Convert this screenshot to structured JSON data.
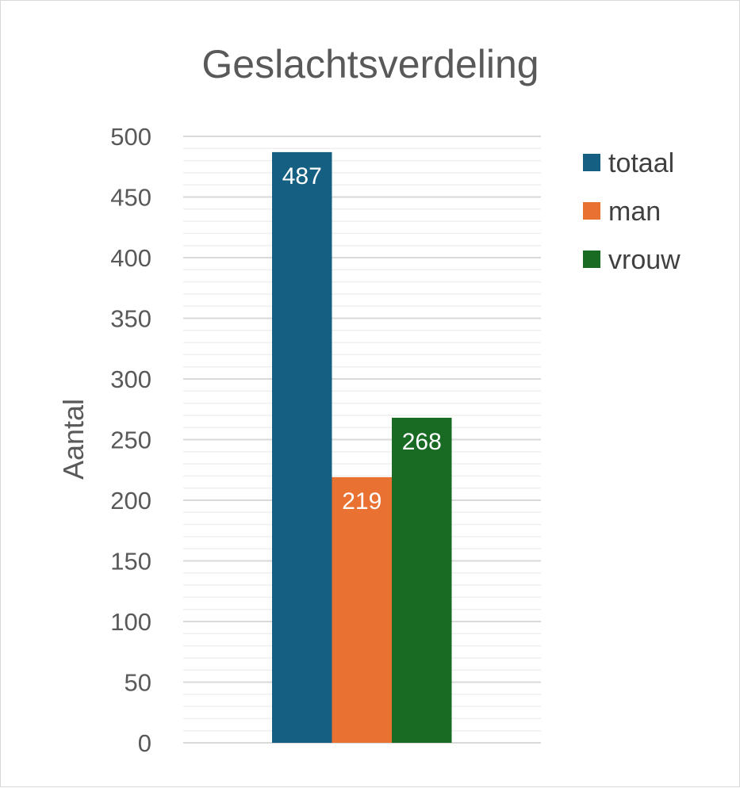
{
  "chart_data": {
    "type": "bar",
    "title": "Geslachtsverdeling",
    "xlabel": "",
    "ylabel": "Aantal",
    "ylim": [
      0,
      500
    ],
    "yticks": [
      0,
      50,
      100,
      150,
      200,
      250,
      300,
      350,
      400,
      450,
      500
    ],
    "categories": [
      ""
    ],
    "series": [
      {
        "name": "totaal",
        "values": [
          487
        ],
        "color": "#156082"
      },
      {
        "name": "man",
        "values": [
          219
        ],
        "color": "#E97132"
      },
      {
        "name": "vrouw",
        "values": [
          268
        ],
        "color": "#196B24"
      }
    ],
    "data_labels": true,
    "grid": true,
    "minor_grid": true,
    "legend_position": "right"
  }
}
